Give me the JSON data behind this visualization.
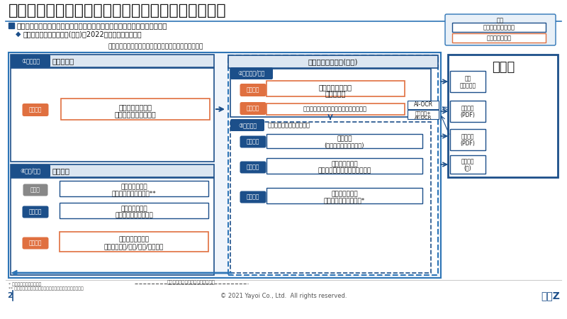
{
  "title": "弥生製品はインボイス制度・電子帳簿保存法に対応",
  "diagram_title": "電帳法・インボイスを中心とした業務デジタル化の仕組",
  "bg_color": "#ffffff",
  "title_color": "#1a1a1a",
  "blue_dark": "#1c4f8a",
  "blue_mid": "#2e75b6",
  "blue_light": "#dce6f1",
  "orange": "#e07040",
  "gray": "#888888",
  "footer": "© 2021 Yayoi Co., Ltd.  All rights reserved.",
  "page_num": "2",
  "yayoi_logo": "弥生Z"
}
